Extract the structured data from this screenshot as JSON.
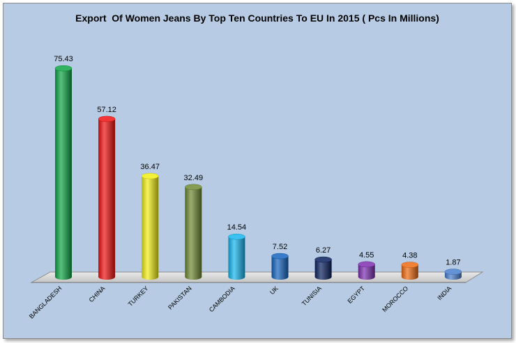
{
  "chart_data": {
    "type": "bar",
    "title": "Export  Of Women Jeans By Top Ten Countries To EU In 2015 ( Pcs In Millions)",
    "categories": [
      "BANGLADESH",
      "CHINA",
      "TURKEY",
      "PAKISTAN",
      "CAMBODIA",
      "UK",
      "TUNISIA",
      "EGYPT",
      "MOROCCO",
      "INDIA"
    ],
    "values": [
      75.43,
      57.12,
      36.47,
      32.49,
      14.54,
      7.52,
      6.27,
      4.55,
      4.38,
      1.87
    ],
    "value_labels": [
      "75.43",
      "57.12",
      "36.47",
      "32.49",
      "14.54",
      "7.52",
      "6.27",
      "4.55",
      "4.38",
      "1.87"
    ],
    "colors": [
      "#0fa645",
      "#f01212",
      "#f2ef16",
      "#6f8b33",
      "#17b6ef",
      "#1565c0",
      "#0a2160",
      "#7d2fb0",
      "#ee6b12",
      "#4a7fcf"
    ],
    "xlabel": "",
    "ylabel": "",
    "ylim": [
      0,
      80
    ],
    "grid": false,
    "legend": "none"
  }
}
